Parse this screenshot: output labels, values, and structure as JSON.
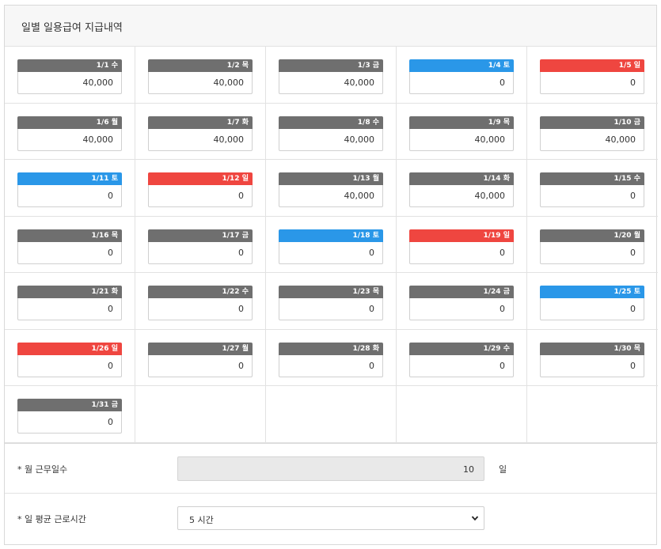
{
  "panel": {
    "title": "일별 일용급여 지급내역"
  },
  "days": [
    {
      "label": "1/1 수",
      "value": "40,000",
      "type": "weekday"
    },
    {
      "label": "1/2 목",
      "value": "40,000",
      "type": "weekday"
    },
    {
      "label": "1/3 금",
      "value": "40,000",
      "type": "weekday"
    },
    {
      "label": "1/4 토",
      "value": "0",
      "type": "sat"
    },
    {
      "label": "1/5 일",
      "value": "0",
      "type": "sun"
    },
    {
      "label": "1/6 월",
      "value": "40,000",
      "type": "weekday"
    },
    {
      "label": "1/7 화",
      "value": "40,000",
      "type": "weekday"
    },
    {
      "label": "1/8 수",
      "value": "40,000",
      "type": "weekday"
    },
    {
      "label": "1/9 목",
      "value": "40,000",
      "type": "weekday"
    },
    {
      "label": "1/10 금",
      "value": "40,000",
      "type": "weekday"
    },
    {
      "label": "1/11 토",
      "value": "0",
      "type": "sat"
    },
    {
      "label": "1/12 일",
      "value": "0",
      "type": "sun"
    },
    {
      "label": "1/13 월",
      "value": "40,000",
      "type": "weekday"
    },
    {
      "label": "1/14 화",
      "value": "40,000",
      "type": "weekday"
    },
    {
      "label": "1/15 수",
      "value": "0",
      "type": "weekday"
    },
    {
      "label": "1/16 목",
      "value": "0",
      "type": "weekday"
    },
    {
      "label": "1/17 금",
      "value": "0",
      "type": "weekday"
    },
    {
      "label": "1/18 토",
      "value": "0",
      "type": "sat"
    },
    {
      "label": "1/19 일",
      "value": "0",
      "type": "sun"
    },
    {
      "label": "1/20 월",
      "value": "0",
      "type": "weekday"
    },
    {
      "label": "1/21 화",
      "value": "0",
      "type": "weekday"
    },
    {
      "label": "1/22 수",
      "value": "0",
      "type": "weekday"
    },
    {
      "label": "1/23 목",
      "value": "0",
      "type": "weekday"
    },
    {
      "label": "1/24 금",
      "value": "0",
      "type": "weekday"
    },
    {
      "label": "1/25 토",
      "value": "0",
      "type": "sat"
    },
    {
      "label": "1/26 일",
      "value": "0",
      "type": "sun"
    },
    {
      "label": "1/27 월",
      "value": "0",
      "type": "weekday"
    },
    {
      "label": "1/28 화",
      "value": "0",
      "type": "weekday"
    },
    {
      "label": "1/29 수",
      "value": "0",
      "type": "weekday"
    },
    {
      "label": "1/30 목",
      "value": "0",
      "type": "weekday"
    },
    {
      "label": "1/31 금",
      "value": "0",
      "type": "weekday"
    }
  ],
  "colors": {
    "weekday": "#6f6f6f",
    "sat": "#2a97e8",
    "sun": "#ef4640"
  },
  "work_days": {
    "label": "* 월 근무일수",
    "value": "10",
    "unit": "일"
  },
  "avg_hours": {
    "label": "* 일 평균 근로시간",
    "selected": "5 시간",
    "icon": "chevron-down-icon"
  }
}
